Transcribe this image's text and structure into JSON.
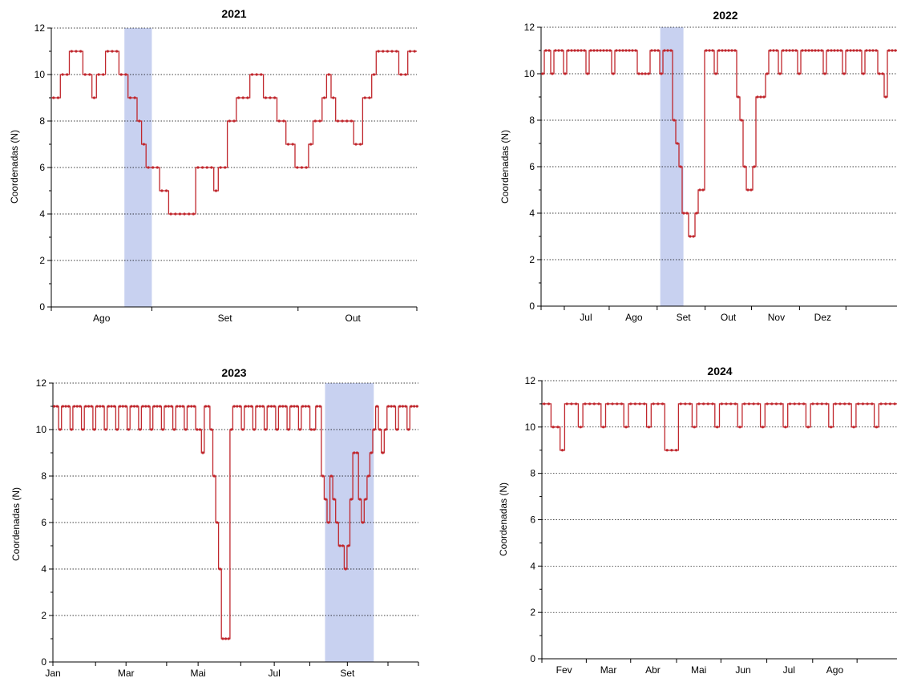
{
  "chart_data": [
    {
      "type": "line",
      "title": "2021",
      "xlabel": "",
      "ylabel": "Coordenadas (N)",
      "ylim": [
        0,
        12
      ],
      "yticks": [
        0,
        2,
        4,
        6,
        8,
        10,
        12
      ],
      "xlim": [
        0,
        80
      ],
      "month_labels": [
        {
          "label": "Ago",
          "x": 11
        },
        {
          "label": "Set",
          "x": 38
        },
        {
          "label": "Out",
          "x": 66
        }
      ],
      "month_ticks": [
        0,
        22,
        54,
        80
      ],
      "highlight": [
        16,
        22
      ],
      "series": [
        {
          "values": [
            9,
            9,
            10,
            10,
            11,
            11,
            11,
            10,
            10,
            9,
            10,
            10,
            11,
            11,
            11,
            10,
            10,
            9,
            9,
            8,
            7,
            6,
            6,
            6,
            5,
            5,
            4,
            4,
            4,
            4,
            4,
            4,
            6,
            6,
            6,
            6,
            5,
            6,
            6,
            8,
            8,
            9,
            9,
            9,
            10,
            10,
            10,
            9,
            9,
            9,
            8,
            8,
            7,
            7,
            6,
            6,
            6,
            7,
            8,
            8,
            9,
            10,
            9,
            8,
            8,
            8,
            8,
            7,
            7,
            9,
            9,
            10,
            11,
            11,
            11,
            11,
            11,
            10,
            10,
            11,
            11
          ],
          "values_note": ""
        }
      ]
    },
    {
      "type": "line",
      "title": "2022",
      "xlabel": "",
      "ylabel": "Coordenadas (N)",
      "ylim": [
        0,
        12
      ],
      "yticks": [
        0,
        2,
        4,
        6,
        8,
        10,
        12
      ],
      "xlim": [
        0,
        230
      ],
      "month_labels": [
        {
          "label": "Jul",
          "x": 29
        },
        {
          "label": "Ago",
          "x": 60
        },
        {
          "label": "Set",
          "x": 92
        },
        {
          "label": "Out",
          "x": 121
        },
        {
          "label": "Nov",
          "x": 152
        },
        {
          "label": "Dez",
          "x": 182
        }
      ],
      "month_ticks": [
        0,
        15,
        44,
        75,
        106,
        136,
        167,
        197
      ],
      "highlight": [
        77,
        92
      ],
      "series": [
        {
          "values": [
            10,
            11,
            11,
            10,
            11,
            11,
            11,
            10,
            11,
            11,
            11,
            11,
            11,
            11,
            10,
            11,
            11,
            11,
            11,
            11,
            11,
            11,
            10,
            11,
            11,
            11,
            11,
            11,
            11,
            11,
            10,
            10,
            10,
            10,
            11,
            11,
            11,
            10,
            11,
            11,
            11,
            8,
            7,
            6,
            4,
            4,
            3,
            3,
            4,
            5,
            5,
            11,
            11,
            11,
            10,
            11,
            11,
            11,
            11,
            11,
            11,
            9,
            8,
            6,
            5,
            5,
            6,
            9,
            9,
            9,
            10,
            11,
            11,
            11,
            10,
            11,
            11,
            11,
            11,
            11,
            10,
            11,
            11,
            11,
            11,
            11,
            11,
            11,
            10,
            11,
            11,
            11,
            11,
            11,
            10,
            11,
            11,
            11,
            11,
            11,
            10,
            11,
            11,
            11,
            11,
            10,
            10,
            9,
            11,
            11,
            11
          ]
        }
      ]
    },
    {
      "type": "line",
      "title": "2023",
      "xlabel": "",
      "ylabel": "Coordenadas (N)",
      "ylim": [
        0,
        12
      ],
      "yticks": [
        0,
        2,
        4,
        6,
        8,
        10,
        12
      ],
      "xlim": [
        0,
        360
      ],
      "month_labels": [
        {
          "label": "Jan",
          "x": 0
        },
        {
          "label": "Mar",
          "x": 72
        },
        {
          "label": "Mai",
          "x": 143
        },
        {
          "label": "Jul",
          "x": 218
        },
        {
          "label": "Set",
          "x": 290
        }
      ],
      "month_ticks": [
        0,
        42,
        72,
        112,
        143,
        185,
        218,
        253,
        290,
        330,
        360
      ],
      "highlight": [
        268,
        316
      ],
      "series": [
        {
          "values": [
            11,
            11,
            10,
            11,
            11,
            11,
            10,
            11,
            11,
            11,
            10,
            11,
            11,
            11,
            10,
            11,
            11,
            11,
            10,
            11,
            11,
            11,
            10,
            11,
            11,
            11,
            10,
            11,
            11,
            11,
            10,
            11,
            11,
            11,
            10,
            11,
            11,
            11,
            10,
            11,
            11,
            11,
            10,
            11,
            11,
            11,
            10,
            11,
            11,
            11,
            10,
            10,
            9,
            11,
            11,
            10,
            8,
            6,
            4,
            1,
            1,
            1,
            10,
            11,
            11,
            11,
            10,
            11,
            11,
            11,
            10,
            11,
            11,
            11,
            10,
            11,
            11,
            11,
            10,
            11,
            11,
            11,
            10,
            11,
            11,
            11,
            10,
            11,
            11,
            11,
            10,
            10,
            11,
            11,
            8,
            7,
            6,
            8,
            7,
            6,
            5,
            5,
            4,
            5,
            7,
            9,
            9,
            7,
            6,
            7,
            8,
            9,
            10,
            11,
            10,
            9,
            10,
            11,
            11,
            11,
            10,
            11,
            11,
            11,
            10,
            11,
            11,
            11
          ]
        }
      ]
    },
    {
      "type": "line",
      "title": "2024",
      "xlabel": "",
      "ylabel": "Coordenadas (N)",
      "ylim": [
        0,
        12
      ],
      "yticks": [
        0,
        2,
        4,
        6,
        8,
        10,
        12
      ],
      "xlim": [
        0,
        240
      ],
      "month_labels": [
        {
          "label": "Fev",
          "x": 15
        },
        {
          "label": "Mar",
          "x": 45
        },
        {
          "label": "Abr",
          "x": 75
        },
        {
          "label": "Mai",
          "x": 106
        },
        {
          "label": "Jun",
          "x": 136
        },
        {
          "label": "Jul",
          "x": 167
        },
        {
          "label": "Ago",
          "x": 198
        }
      ],
      "month_ticks": [
        0,
        30,
        60,
        91,
        121,
        152,
        183,
        213
      ],
      "highlight": null,
      "series": [
        {
          "values": [
            11,
            11,
            10,
            10,
            9,
            11,
            11,
            11,
            10,
            11,
            11,
            11,
            11,
            10,
            11,
            11,
            11,
            11,
            10,
            11,
            11,
            11,
            11,
            10,
            11,
            11,
            11,
            9,
            9,
            9,
            11,
            11,
            11,
            10,
            11,
            11,
            11,
            11,
            10,
            11,
            11,
            11,
            11,
            10,
            11,
            11,
            11,
            11,
            10,
            11,
            11,
            11,
            11,
            10,
            11,
            11,
            11,
            11,
            10,
            11,
            11,
            11,
            11,
            10,
            11,
            11,
            11,
            11,
            10,
            11,
            11,
            11,
            11,
            10,
            11,
            11,
            11,
            11
          ]
        }
      ]
    }
  ]
}
